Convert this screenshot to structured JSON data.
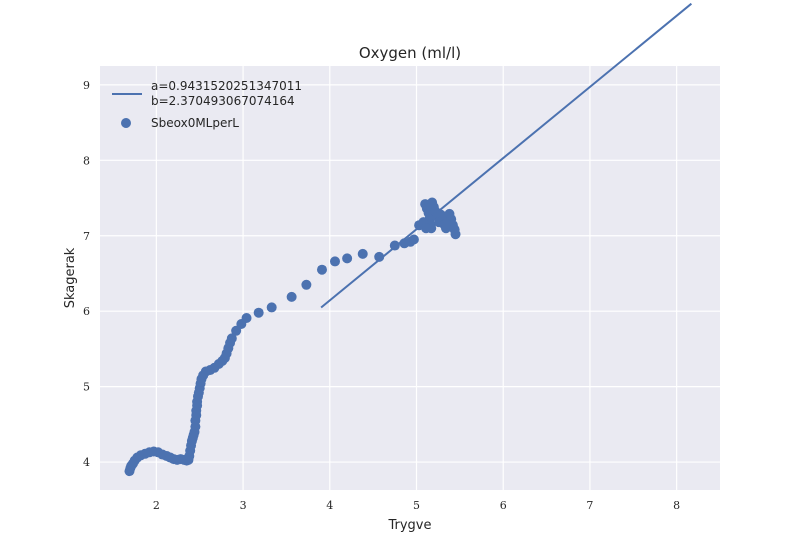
{
  "colors": {
    "background": "#EAEAF2",
    "grid": "#FFFFFF",
    "series": "#4C72B0"
  },
  "chart_data": {
    "type": "scatter",
    "title": "Oxygen (ml/l)",
    "xlabel": "Trygve",
    "ylabel": "Skagerak",
    "xlim": [
      1.35,
      8.5
    ],
    "ylim": [
      3.63,
      9.25
    ],
    "xticks": [
      2,
      3,
      4,
      5,
      6,
      7,
      8
    ],
    "yticks": [
      4,
      5,
      6,
      7,
      8,
      9
    ],
    "grid": true,
    "legend_position": "upper-left",
    "fit_line": {
      "label_line1": "a=0.9431520251347011",
      "label_line2": "b=2.370493067074164",
      "a": 0.9431520251347011,
      "b": 2.370493067074164,
      "x_range": [
        3.9,
        8.17
      ]
    },
    "scatter": {
      "name": "Sbeox0MLperL",
      "points": [
        [
          1.69,
          3.88
        ],
        [
          1.7,
          3.92
        ],
        [
          1.71,
          3.95
        ],
        [
          1.73,
          3.98
        ],
        [
          1.75,
          4.02
        ],
        [
          1.78,
          4.06
        ],
        [
          1.82,
          4.09
        ],
        [
          1.87,
          4.11
        ],
        [
          1.92,
          4.13
        ],
        [
          1.97,
          4.14
        ],
        [
          2.02,
          4.13
        ],
        [
          2.07,
          4.1
        ],
        [
          2.12,
          4.08
        ],
        [
          2.16,
          4.06
        ],
        [
          2.2,
          4.04
        ],
        [
          2.24,
          4.03
        ],
        [
          2.28,
          4.04
        ],
        [
          2.32,
          4.03
        ],
        [
          2.35,
          4.02
        ],
        [
          2.37,
          4.03
        ],
        [
          2.38,
          4.08
        ],
        [
          2.39,
          4.15
        ],
        [
          2.4,
          4.22
        ],
        [
          2.41,
          4.28
        ],
        [
          2.42,
          4.32
        ],
        [
          2.43,
          4.36
        ],
        [
          2.44,
          4.4
        ],
        [
          2.45,
          4.47
        ],
        [
          2.45,
          4.55
        ],
        [
          2.46,
          4.62
        ],
        [
          2.46,
          4.68
        ],
        [
          2.47,
          4.75
        ],
        [
          2.47,
          4.8
        ],
        [
          2.48,
          4.87
        ],
        [
          2.49,
          4.92
        ],
        [
          2.5,
          4.98
        ],
        [
          2.51,
          5.04
        ],
        [
          2.52,
          5.1
        ],
        [
          2.54,
          5.15
        ],
        [
          2.57,
          5.2
        ],
        [
          2.62,
          5.22
        ],
        [
          2.67,
          5.25
        ],
        [
          2.72,
          5.3
        ],
        [
          2.76,
          5.34
        ],
        [
          2.79,
          5.38
        ],
        [
          2.81,
          5.44
        ],
        [
          2.83,
          5.51
        ],
        [
          2.85,
          5.58
        ],
        [
          2.87,
          5.64
        ],
        [
          2.92,
          5.74
        ],
        [
          2.98,
          5.83
        ],
        [
          3.04,
          5.91
        ],
        [
          3.18,
          5.98
        ],
        [
          3.33,
          6.05
        ],
        [
          3.56,
          6.19
        ],
        [
          3.73,
          6.35
        ],
        [
          3.91,
          6.55
        ],
        [
          4.06,
          6.66
        ],
        [
          4.2,
          6.7
        ],
        [
          4.38,
          6.76
        ],
        [
          4.57,
          6.72
        ],
        [
          4.75,
          6.87
        ],
        [
          4.86,
          6.9
        ],
        [
          4.93,
          6.92
        ],
        [
          4.97,
          6.95
        ],
        [
          5.03,
          7.14
        ],
        [
          5.08,
          7.18
        ],
        [
          5.1,
          7.42
        ],
        [
          5.12,
          7.36
        ],
        [
          5.14,
          7.3
        ],
        [
          5.15,
          7.22
        ],
        [
          5.16,
          7.15
        ],
        [
          5.17,
          7.1
        ],
        [
          5.18,
          7.44
        ],
        [
          5.2,
          7.38
        ],
        [
          5.22,
          7.32
        ],
        [
          5.24,
          7.25
        ],
        [
          5.26,
          7.18
        ],
        [
          5.28,
          7.28
        ],
        [
          5.3,
          7.2
        ],
        [
          5.32,
          7.15
        ],
        [
          5.34,
          7.1
        ],
        [
          5.36,
          7.24
        ],
        [
          5.38,
          7.29
        ],
        [
          5.4,
          7.22
        ],
        [
          5.42,
          7.14
        ],
        [
          5.44,
          7.08
        ],
        [
          5.45,
          7.02
        ],
        [
          5.11,
          7.1
        ],
        [
          5.34,
          7.16
        ]
      ]
    }
  }
}
